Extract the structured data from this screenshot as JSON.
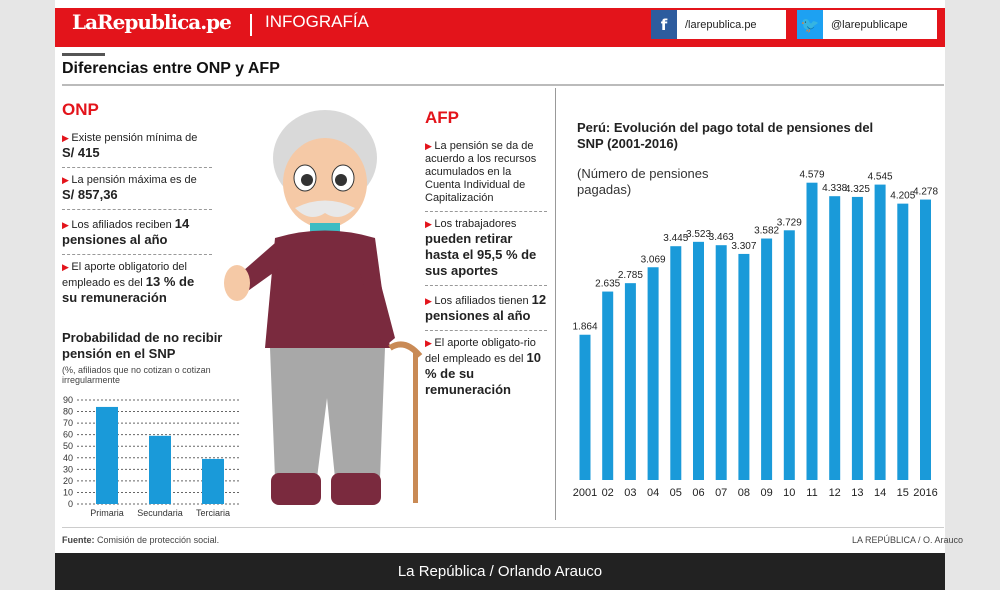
{
  "header": {
    "logo": "LaRepublica.pe",
    "section": "INFOGRAFÍA",
    "facebook": "/larepublica.pe",
    "twitter": "@larepublicape",
    "facebook_icon": "facebook-icon",
    "twitter_icon": "twitter-icon",
    "brand_color": "#e3141b"
  },
  "title": "Diferencias entre ONP y AFP",
  "onp": {
    "heading": "ONP",
    "items": [
      {
        "text": "Existe pensión mínima de",
        "bold": "S/ 415"
      },
      {
        "text": "La pensión máxima es de",
        "bold": "S/ 857,36"
      },
      {
        "text": "Los afiliados reciben",
        "bold": "14 pensiones al año"
      },
      {
        "text": "El aporte obligatorio del empleado es del",
        "bold": "13 % de su remuneración"
      }
    ]
  },
  "afp": {
    "heading": "AFP",
    "items": [
      {
        "text": "La pensión se da de acuerdo a los recursos acumulados en la Cuenta Individual de Capitalización",
        "bold": ""
      },
      {
        "text": "Los trabajadores",
        "bold": "pueden retirar hasta el 95,5 % de sus aportes"
      },
      {
        "text": "Los afiliados tienen",
        "bold": "12 pensiones al año"
      },
      {
        "text": "El aporte obligato-rio del empleado es del",
        "bold": "10 % de su remuneración"
      }
    ]
  },
  "chart_data": [
    {
      "type": "bar",
      "title": "Probabilidad de no recibir pensión en el SNP",
      "subtitle": "(%, afiliados que no cotizan o cotizan irregularmente",
      "categories": [
        "Primaria",
        "Secundaria",
        "Terciaria"
      ],
      "values": [
        84,
        59,
        39
      ],
      "yticks": [
        0,
        10,
        20,
        30,
        40,
        50,
        60,
        70,
        80,
        90
      ],
      "ylim": [
        0,
        90
      ],
      "grid": true,
      "color": "#1a9ad9"
    },
    {
      "type": "bar",
      "title": "Perú: Evolución del pago total de pensiones del SNP (2001-2016)",
      "subtitle": "(Número de pensiones pagadas)",
      "categories": [
        "2001",
        "02",
        "03",
        "04",
        "05",
        "06",
        "07",
        "08",
        "09",
        "10",
        "11",
        "12",
        "13",
        "14",
        "15",
        "2016"
      ],
      "values": [
        1.864,
        2.635,
        2.785,
        3.069,
        3.445,
        3.523,
        3.463,
        3.307,
        3.582,
        3.729,
        4.579,
        4.338,
        4.325,
        4.545,
        4.205,
        4.278
      ],
      "labels": [
        "1.864",
        "2.635",
        "2.785",
        "3.069",
        "3.445",
        "3.523",
        "3.463",
        "3.307",
        "3.582",
        "3.729",
        "4.579",
        "4.338",
        "4.325",
        "4.545",
        "4.205",
        "4.278"
      ],
      "grid": false,
      "color": "#1a9ad9"
    }
  ],
  "source": {
    "label": "Fuente:",
    "text": "Comisión de protección social."
  },
  "credit": "LA REPÚBLICA / O. Arauco",
  "footer": "La República / Orlando Arauco"
}
